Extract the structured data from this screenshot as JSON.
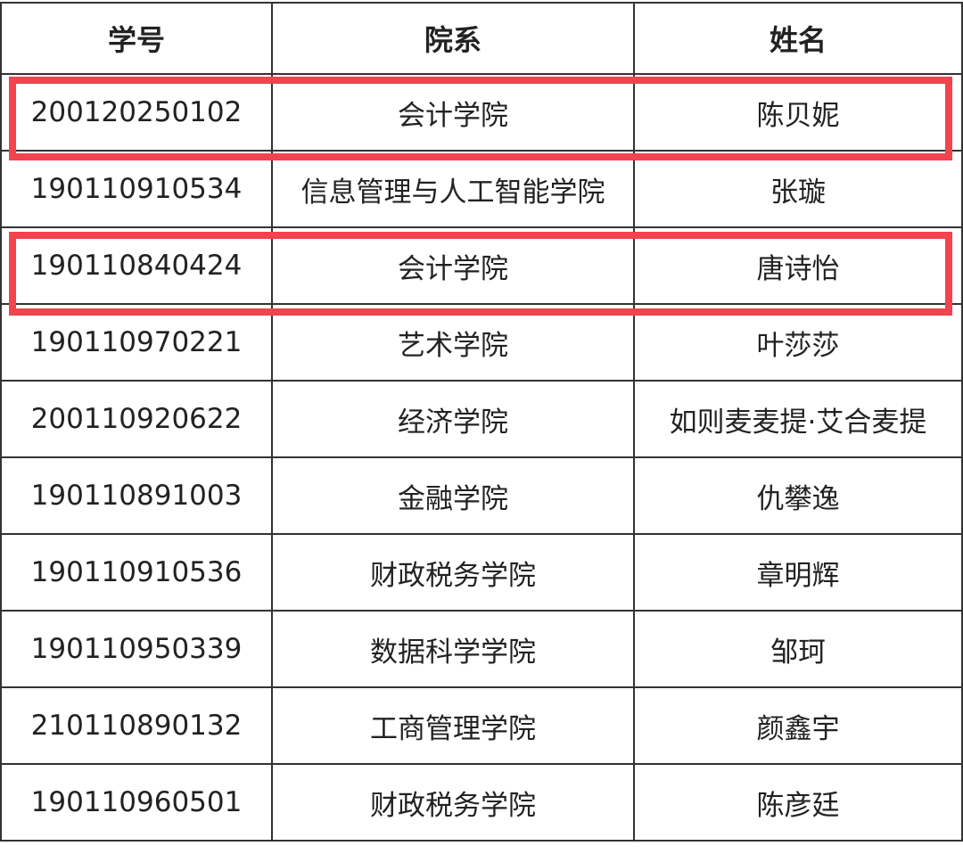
{
  "table": {
    "headers": [
      "学号",
      "院系",
      "姓名"
    ],
    "rows": [
      [
        "200120250102",
        "会计学院",
        "陈贝妮"
      ],
      [
        "190110910534",
        "信息管理与人工智能学院",
        "张璇"
      ],
      [
        "190110840424",
        "会计学院",
        "唐诗怡"
      ],
      [
        "190110970221",
        "艺术学院",
        "叶莎莎"
      ],
      [
        "200110920622",
        "经济学院",
        "如则麦麦提·艾合麦提"
      ],
      [
        "190110891003",
        "金融学院",
        "仇攀逸"
      ],
      [
        "190110910536",
        "财政税务学院",
        "章明辉"
      ],
      [
        "190110950339",
        "数据科学学院",
        "邹珂"
      ],
      [
        "210110890132",
        "工商管理学院",
        "颜鑫宇"
      ],
      [
        "190110960501",
        "财政税务学院",
        "陈彦廷"
      ]
    ],
    "highlighted_rows": [
      0,
      2
    ],
    "highlight_color": "#f2434f"
  }
}
